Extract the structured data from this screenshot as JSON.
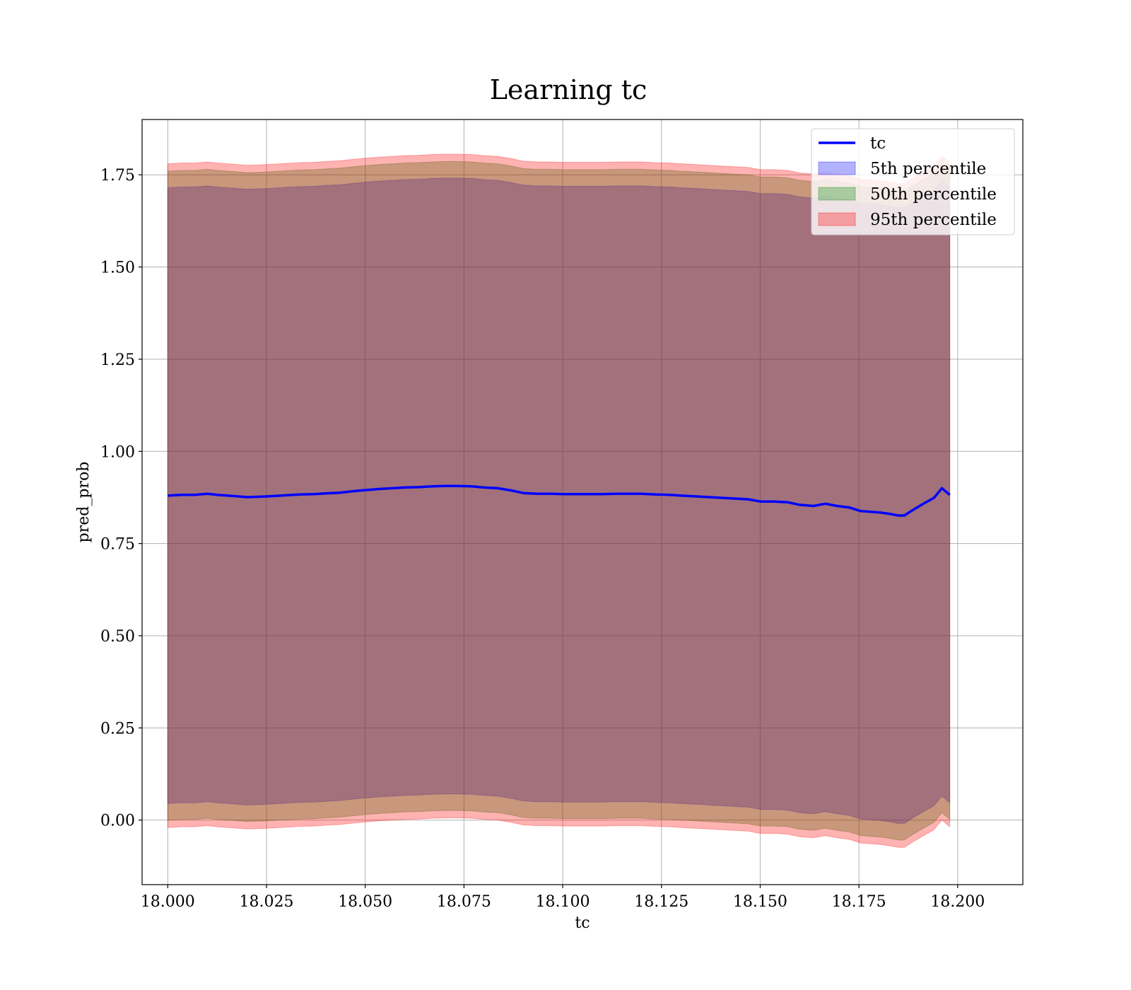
{
  "chart_data": {
    "type": "area",
    "title": "Learning tc",
    "xlabel": "tc",
    "ylabel": "pred_prob",
    "xlim": [
      17.9935,
      18.2165
    ],
    "ylim": [
      -0.175,
      1.9
    ],
    "x_ticks": [
      "18.000",
      "18.025",
      "18.050",
      "18.075",
      "18.100",
      "18.125",
      "18.150",
      "18.175",
      "18.200"
    ],
    "x_tick_values": [
      18.0,
      18.025,
      18.05,
      18.075,
      18.1,
      18.125,
      18.15,
      18.175,
      18.2
    ],
    "y_ticks": [
      "0.00",
      "0.25",
      "0.50",
      "0.75",
      "1.00",
      "1.25",
      "1.50",
      "1.75"
    ],
    "y_tick_values": [
      0.0,
      0.25,
      0.5,
      0.75,
      1.0,
      1.25,
      1.5,
      1.75
    ],
    "grid": true,
    "legend_position": "top-right",
    "legend": [
      {
        "label": "tc",
        "kind": "line",
        "color": "#0000ff"
      },
      {
        "label": "5th percentile",
        "kind": "patch",
        "color": "#0000ff"
      },
      {
        "label": "50th percentile",
        "kind": "patch",
        "color": "#008000"
      },
      {
        "label": "95th percentile",
        "kind": "patch",
        "color": "#ff0000"
      }
    ],
    "x": [
      18.0,
      18.0035,
      18.007,
      18.01,
      18.0125,
      18.0165,
      18.02,
      18.0235,
      18.027,
      18.03,
      18.0335,
      18.037,
      18.04,
      18.0435,
      18.047,
      18.05,
      18.0535,
      18.057,
      18.06,
      18.0635,
      18.067,
      18.07,
      18.0735,
      18.077,
      18.08,
      18.0835,
      18.087,
      18.09,
      18.0935,
      18.097,
      18.1,
      18.1035,
      18.107,
      18.11,
      18.1135,
      18.117,
      18.12,
      18.1235,
      18.127,
      18.13,
      18.1335,
      18.137,
      18.14,
      18.1435,
      18.147,
      18.15,
      18.1535,
      18.157,
      18.16,
      18.1635,
      18.1665,
      18.1695,
      18.1725,
      18.1755,
      18.178,
      18.1805,
      18.183,
      18.185,
      18.1865,
      18.1885,
      18.191,
      18.194,
      18.196,
      18.198
    ],
    "series": [
      {
        "name": "tc",
        "kind": "line",
        "color": "#0000ff",
        "values": [
          0.88,
          0.882,
          0.882,
          0.885,
          0.882,
          0.879,
          0.876,
          0.877,
          0.879,
          0.881,
          0.883,
          0.884,
          0.886,
          0.888,
          0.892,
          0.895,
          0.898,
          0.9,
          0.902,
          0.903,
          0.905,
          0.906,
          0.906,
          0.905,
          0.902,
          0.9,
          0.894,
          0.887,
          0.885,
          0.885,
          0.884,
          0.884,
          0.884,
          0.884,
          0.885,
          0.885,
          0.885,
          0.883,
          0.882,
          0.88,
          0.878,
          0.876,
          0.874,
          0.872,
          0.87,
          0.864,
          0.864,
          0.862,
          0.855,
          0.852,
          0.858,
          0.852,
          0.848,
          0.838,
          0.836,
          0.834,
          0.83,
          0.826,
          0.826,
          0.84,
          0.856,
          0.874,
          0.9,
          0.882
        ]
      },
      {
        "name": "5th percentile",
        "kind": "band",
        "color": "#0000ff",
        "lower": [
          0.045,
          0.047,
          0.047,
          0.05,
          0.047,
          0.044,
          0.041,
          0.042,
          0.044,
          0.046,
          0.048,
          0.049,
          0.051,
          0.053,
          0.057,
          0.06,
          0.063,
          0.065,
          0.067,
          0.068,
          0.07,
          0.071,
          0.071,
          0.07,
          0.067,
          0.065,
          0.059,
          0.052,
          0.05,
          0.05,
          0.049,
          0.049,
          0.049,
          0.049,
          0.05,
          0.05,
          0.05,
          0.048,
          0.047,
          0.045,
          0.043,
          0.041,
          0.039,
          0.037,
          0.035,
          0.029,
          0.029,
          0.027,
          0.02,
          0.017,
          0.023,
          0.017,
          0.013,
          0.003,
          0.001,
          -0.001,
          -0.005,
          -0.009,
          -0.009,
          0.005,
          0.021,
          0.039,
          0.065,
          0.047
        ],
        "upper": [
          1.715,
          1.717,
          1.717,
          1.72,
          1.717,
          1.714,
          1.711,
          1.712,
          1.714,
          1.716,
          1.718,
          1.719,
          1.721,
          1.723,
          1.727,
          1.73,
          1.733,
          1.735,
          1.737,
          1.738,
          1.74,
          1.741,
          1.741,
          1.74,
          1.737,
          1.735,
          1.729,
          1.722,
          1.72,
          1.72,
          1.719,
          1.719,
          1.719,
          1.719,
          1.72,
          1.72,
          1.72,
          1.718,
          1.717,
          1.715,
          1.713,
          1.711,
          1.709,
          1.707,
          1.705,
          1.699,
          1.699,
          1.697,
          1.69,
          1.687,
          1.693,
          1.687,
          1.683,
          1.673,
          1.671,
          1.669,
          1.665,
          1.661,
          1.661,
          1.675,
          1.691,
          1.709,
          1.735,
          1.717
        ]
      },
      {
        "name": "50th percentile",
        "kind": "band",
        "color": "#008000",
        "lower": [
          0.0,
          0.002,
          0.002,
          0.005,
          0.002,
          -0.001,
          -0.004,
          -0.003,
          -0.001,
          0.001,
          0.003,
          0.004,
          0.006,
          0.008,
          0.012,
          0.015,
          0.018,
          0.02,
          0.022,
          0.023,
          0.025,
          0.026,
          0.026,
          0.025,
          0.022,
          0.02,
          0.014,
          0.007,
          0.005,
          0.005,
          0.004,
          0.004,
          0.004,
          0.004,
          0.005,
          0.005,
          0.005,
          0.003,
          0.002,
          0.0,
          -0.002,
          -0.004,
          -0.006,
          -0.008,
          -0.01,
          -0.016,
          -0.016,
          -0.018,
          -0.025,
          -0.028,
          -0.022,
          -0.028,
          -0.032,
          -0.042,
          -0.044,
          -0.046,
          -0.05,
          -0.054,
          -0.054,
          -0.04,
          -0.024,
          -0.006,
          0.02,
          0.002
        ],
        "upper": [
          1.76,
          1.762,
          1.762,
          1.765,
          1.762,
          1.759,
          1.756,
          1.757,
          1.759,
          1.761,
          1.763,
          1.764,
          1.766,
          1.768,
          1.772,
          1.775,
          1.778,
          1.78,
          1.782,
          1.783,
          1.785,
          1.786,
          1.786,
          1.785,
          1.782,
          1.78,
          1.774,
          1.767,
          1.765,
          1.765,
          1.764,
          1.764,
          1.764,
          1.764,
          1.765,
          1.765,
          1.765,
          1.763,
          1.762,
          1.76,
          1.758,
          1.756,
          1.754,
          1.752,
          1.75,
          1.744,
          1.744,
          1.742,
          1.735,
          1.732,
          1.738,
          1.732,
          1.728,
          1.718,
          1.716,
          1.714,
          1.71,
          1.706,
          1.706,
          1.72,
          1.736,
          1.754,
          1.78,
          1.762
        ]
      },
      {
        "name": "95th percentile",
        "kind": "band",
        "color": "#ff0000",
        "lower": [
          -0.02,
          -0.018,
          -0.018,
          -0.015,
          -0.018,
          -0.021,
          -0.024,
          -0.023,
          -0.021,
          -0.019,
          -0.017,
          -0.016,
          -0.014,
          -0.012,
          -0.008,
          -0.005,
          -0.002,
          0.0,
          0.002,
          0.003,
          0.005,
          0.006,
          0.006,
          0.005,
          0.002,
          0.0,
          -0.006,
          -0.013,
          -0.015,
          -0.015,
          -0.016,
          -0.016,
          -0.016,
          -0.016,
          -0.015,
          -0.015,
          -0.015,
          -0.017,
          -0.018,
          -0.02,
          -0.022,
          -0.024,
          -0.026,
          -0.028,
          -0.03,
          -0.036,
          -0.036,
          -0.038,
          -0.045,
          -0.048,
          -0.042,
          -0.048,
          -0.052,
          -0.062,
          -0.064,
          -0.066,
          -0.07,
          -0.074,
          -0.074,
          -0.06,
          -0.044,
          -0.026,
          0.0,
          -0.018
        ],
        "upper": [
          1.78,
          1.782,
          1.782,
          1.785,
          1.782,
          1.779,
          1.776,
          1.777,
          1.779,
          1.781,
          1.783,
          1.784,
          1.786,
          1.788,
          1.792,
          1.795,
          1.798,
          1.8,
          1.802,
          1.803,
          1.805,
          1.806,
          1.806,
          1.805,
          1.802,
          1.8,
          1.794,
          1.787,
          1.785,
          1.785,
          1.784,
          1.784,
          1.784,
          1.784,
          1.785,
          1.785,
          1.785,
          1.783,
          1.782,
          1.78,
          1.778,
          1.776,
          1.774,
          1.772,
          1.77,
          1.764,
          1.764,
          1.762,
          1.755,
          1.752,
          1.758,
          1.752,
          1.748,
          1.738,
          1.736,
          1.734,
          1.73,
          1.726,
          1.726,
          1.74,
          1.756,
          1.774,
          1.8,
          1.782
        ]
      }
    ]
  }
}
